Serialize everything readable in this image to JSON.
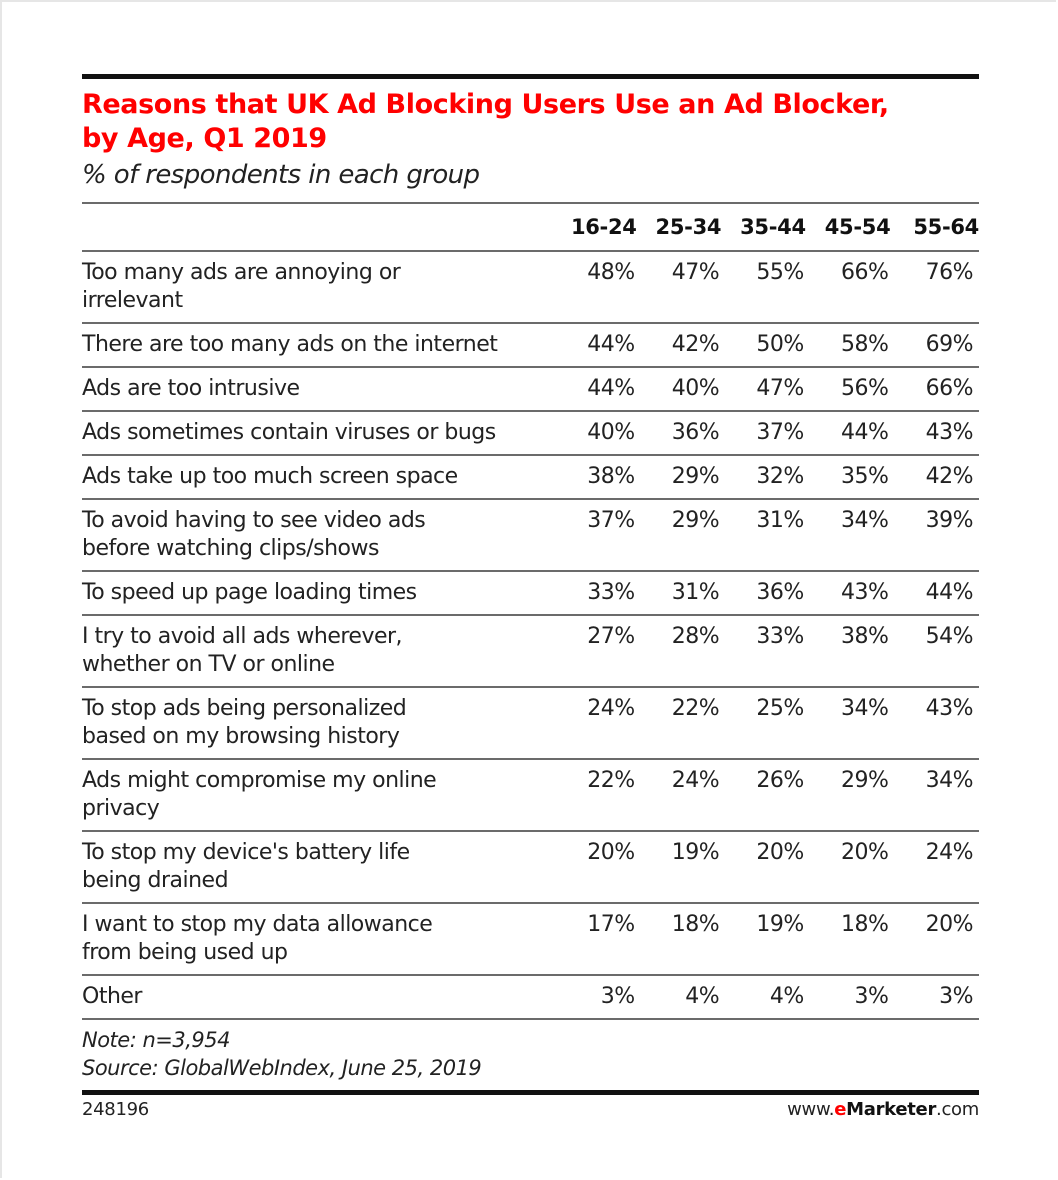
{
  "chart_data": {
    "type": "table",
    "title": "Reasons that UK Ad Blocking Users Use an Ad Blocker, by Age, Q1 2019",
    "subtitle": "% of respondents in each group",
    "columns": [
      "16-24",
      "25-34",
      "35-44",
      "45-54",
      "55-64"
    ],
    "rows": [
      {
        "label": "Too many ads are annoying or irrelevant",
        "values": [
          48,
          47,
          55,
          66,
          76
        ]
      },
      {
        "label": "There are too many ads on the internet",
        "values": [
          44,
          42,
          50,
          58,
          69
        ]
      },
      {
        "label": "Ads are too intrusive",
        "values": [
          44,
          40,
          47,
          56,
          66
        ]
      },
      {
        "label": "Ads sometimes contain viruses or bugs",
        "values": [
          40,
          36,
          37,
          44,
          43
        ]
      },
      {
        "label": "Ads take up too much screen space",
        "values": [
          38,
          29,
          32,
          35,
          42
        ]
      },
      {
        "label": "To avoid having to see video ads before watching clips/shows",
        "values": [
          37,
          29,
          31,
          34,
          39
        ]
      },
      {
        "label": "To speed up page loading times",
        "values": [
          33,
          31,
          36,
          43,
          44
        ]
      },
      {
        "label": "I try to avoid all ads wherever, whether on TV or online",
        "values": [
          27,
          28,
          33,
          38,
          54
        ]
      },
      {
        "label": "To stop ads being personalized based on my browsing history",
        "values": [
          24,
          22,
          25,
          34,
          43
        ]
      },
      {
        "label": "Ads might compromise my online privacy",
        "values": [
          22,
          24,
          26,
          29,
          34
        ]
      },
      {
        "label": "To stop my device's battery life being drained",
        "values": [
          20,
          19,
          20,
          20,
          24
        ]
      },
      {
        "label": "I want to stop my data allowance from being used up",
        "values": [
          17,
          18,
          19,
          18,
          20
        ]
      },
      {
        "label": "Other",
        "values": [
          3,
          4,
          4,
          3,
          3
        ]
      }
    ],
    "unit": "%",
    "note": "Note: n=3,954",
    "source": "Source: GlobalWebIndex, June 25, 2019"
  },
  "header": {
    "title_line1": "Reasons that UK Ad Blocking Users Use an Ad Blocker,",
    "title_line2": "by Age, Q1 2019",
    "subtitle": "% of respondents in each group",
    "title_color": "#ff0000"
  },
  "table": {
    "columns": [
      "",
      "16-24",
      "25-34",
      "35-44",
      "45-54",
      "55-64"
    ],
    "rows": [
      {
        "label1": "Too many ads are annoying or",
        "label2": "irrelevant",
        "cells": [
          "48%",
          "47%",
          "55%",
          "66%",
          "76%"
        ]
      },
      {
        "label1": "There are too many ads on the internet",
        "label2": "",
        "cells": [
          "44%",
          "42%",
          "50%",
          "58%",
          "69%"
        ]
      },
      {
        "label1": "Ads are too intrusive",
        "label2": "",
        "cells": [
          "44%",
          "40%",
          "47%",
          "56%",
          "66%"
        ]
      },
      {
        "label1": "Ads sometimes contain viruses or bugs",
        "label2": "",
        "cells": [
          "40%",
          "36%",
          "37%",
          "44%",
          "43%"
        ]
      },
      {
        "label1": "Ads take up too much screen space",
        "label2": "",
        "cells": [
          "38%",
          "29%",
          "32%",
          "35%",
          "42%"
        ]
      },
      {
        "label1": "To avoid having to see video ads",
        "label2": "before watching clips/shows",
        "cells": [
          "37%",
          "29%",
          "31%",
          "34%",
          "39%"
        ]
      },
      {
        "label1": "To speed up page loading times",
        "label2": "",
        "cells": [
          "33%",
          "31%",
          "36%",
          "43%",
          "44%"
        ]
      },
      {
        "label1": "I try to avoid all ads wherever,",
        "label2": "whether on TV or online",
        "cells": [
          "27%",
          "28%",
          "33%",
          "38%",
          "54%"
        ]
      },
      {
        "label1": "To stop ads being personalized",
        "label2": "based on my browsing history",
        "cells": [
          "24%",
          "22%",
          "25%",
          "34%",
          "43%"
        ]
      },
      {
        "label1": "Ads might compromise my online",
        "label2": "privacy",
        "cells": [
          "22%",
          "24%",
          "26%",
          "29%",
          "34%"
        ]
      },
      {
        "label1": "To stop my device's battery life",
        "label2": "being drained",
        "cells": [
          "20%",
          "19%",
          "20%",
          "20%",
          "24%"
        ]
      },
      {
        "label1": "I want to stop my data allowance",
        "label2": "from being used up",
        "cells": [
          "17%",
          "18%",
          "19%",
          "18%",
          "20%"
        ]
      },
      {
        "label1": "Other",
        "label2": "",
        "cells": [
          "3%",
          "4%",
          "4%",
          "3%",
          "3%"
        ]
      }
    ]
  },
  "notes": {
    "note": "Note: n=3,954",
    "source": "Source: GlobalWebIndex, June 25, 2019"
  },
  "footer": {
    "chart_id": "248196",
    "brand_prefix": "www.",
    "brand_e": "e",
    "brand_name": "Marketer",
    "brand_suffix": ".com",
    "brand_accent": "#ff0000"
  }
}
